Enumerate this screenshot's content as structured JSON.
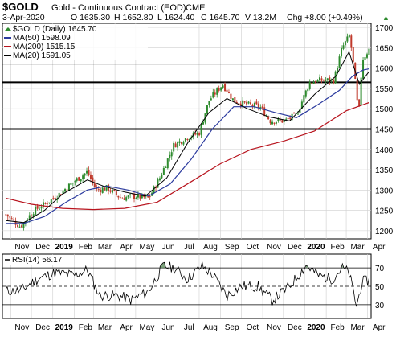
{
  "header": {
    "symbol": "$GOLD",
    "name": "Gold - Continuous Contract (EOD)",
    "exchange": "CME",
    "date": "3-Apr-2020",
    "open": "O 1635.30",
    "high": "H 1652.80",
    "low": "L 1624.40",
    "close": "C 1645.70",
    "volume": "V 13.2M",
    "change": "Chg +8.00 (+0.49%)",
    "change_arrow": "▲"
  },
  "legend": {
    "price": "$GOLD (Daily) 1645.70",
    "ma50": "MA(50) 1598.09",
    "ma200": "MA(200) 1515.15",
    "ma20": "MA(20) 1591.05"
  },
  "rsi_legend": "RSI(14) 56.17",
  "colors": {
    "candle_up": "#2e8b2e",
    "candle_down": "#c0392b",
    "wick": "#555555",
    "ma50": "#2b3a9e",
    "ma200": "#b8141e",
    "ma20": "#000000",
    "rsi_line": "#000000",
    "rsi_fill": "#5a8a5a",
    "grid": "#cfcfcf",
    "support_line": "#000000"
  },
  "chart_data": [
    {
      "type": "candlestick",
      "title": "$GOLD (Daily) 1645.70",
      "ylabel": "",
      "ylim": [
        1180,
        1710
      ],
      "y_ticks": [
        1200,
        1250,
        1300,
        1350,
        1400,
        1450,
        1500,
        1550,
        1600,
        1650,
        1700
      ],
      "x_tick_labels": [
        "Nov",
        "Dec",
        "2019",
        "Feb",
        "Mar",
        "Apr",
        "May",
        "Jun",
        "Jul",
        "Aug",
        "Sep",
        "Oct",
        "Nov",
        "Dec",
        "2020",
        "Feb",
        "Mar",
        "Apr"
      ],
      "x_tick_bold": [
        "2019",
        "2020"
      ],
      "grid": true,
      "horizontal_lines": [
        1610,
        1565,
        1450
      ],
      "series": [
        {
          "name": "$GOLD (Daily) 1645.70",
          "x": [
            "2018-10-25",
            "2018-11-15",
            "2018-12-05",
            "2018-12-20",
            "2019-01-10",
            "2019-01-31",
            "2019-02-20",
            "2019-03-05",
            "2019-03-20",
            "2019-04-10",
            "2019-04-30",
            "2019-05-20",
            "2019-06-05",
            "2019-06-25",
            "2019-07-15",
            "2019-08-01",
            "2019-08-15",
            "2019-09-04",
            "2019-09-20",
            "2019-10-10",
            "2019-10-28",
            "2019-11-12",
            "2019-12-03",
            "2019-12-20",
            "2020-01-08",
            "2020-01-24",
            "2020-02-12",
            "2020-02-24",
            "2020-03-06",
            "2020-03-12",
            "2020-03-19",
            "2020-03-24",
            "2020-04-03"
          ],
          "values": [
            1240,
            1210,
            1250,
            1265,
            1290,
            1320,
            1345,
            1300,
            1305,
            1280,
            1285,
            1280,
            1330,
            1410,
            1430,
            1440,
            1520,
            1560,
            1520,
            1510,
            1505,
            1470,
            1470,
            1485,
            1565,
            1570,
            1570,
            1650,
            1680,
            1600,
            1480,
            1620,
            1645.7
          ]
        },
        {
          "name": "MA(50) 1598.09",
          "x": [
            "2018-10-25",
            "2018-11-20",
            "2018-12-20",
            "2019-01-20",
            "2019-02-20",
            "2019-03-20",
            "2019-04-20",
            "2019-05-20",
            "2019-06-20",
            "2019-07-20",
            "2019-08-20",
            "2019-09-20",
            "2019-10-20",
            "2019-11-20",
            "2019-12-20",
            "2020-01-20",
            "2020-02-20",
            "2020-03-10",
            "2020-03-25",
            "2020-04-03"
          ],
          "values": [
            1218,
            1218,
            1235,
            1270,
            1300,
            1310,
            1300,
            1285,
            1315,
            1375,
            1450,
            1505,
            1505,
            1490,
            1478,
            1510,
            1545,
            1580,
            1595,
            1598.09
          ]
        },
        {
          "name": "MA(200) 1515.15",
          "x": [
            "2018-10-25",
            "2018-12-01",
            "2019-01-15",
            "2019-03-01",
            "2019-04-15",
            "2019-06-01",
            "2019-07-15",
            "2019-09-01",
            "2019-10-15",
            "2019-12-01",
            "2020-01-15",
            "2020-03-01",
            "2020-04-03"
          ],
          "values": [
            1280,
            1265,
            1255,
            1252,
            1255,
            1270,
            1315,
            1365,
            1400,
            1420,
            1445,
            1495,
            1515.15
          ]
        },
        {
          "name": "MA(20) 1591.05",
          "x": [
            "2018-10-25",
            "2018-11-20",
            "2018-12-20",
            "2019-01-15",
            "2019-02-20",
            "2019-03-15",
            "2019-04-15",
            "2019-05-15",
            "2019-06-15",
            "2019-07-15",
            "2019-08-15",
            "2019-09-10",
            "2019-10-10",
            "2019-11-10",
            "2019-12-10",
            "2020-01-15",
            "2020-02-15",
            "2020-03-05",
            "2020-03-20",
            "2020-04-03"
          ],
          "values": [
            1225,
            1220,
            1250,
            1290,
            1325,
            1310,
            1295,
            1285,
            1330,
            1415,
            1490,
            1525,
            1500,
            1480,
            1470,
            1535,
            1580,
            1640,
            1560,
            1591.05
          ]
        }
      ]
    },
    {
      "type": "line",
      "title": "RSI(14) 56.17",
      "ylim": [
        15,
        85
      ],
      "y_ticks": [
        30,
        50,
        70
      ],
      "reference_lines": [
        30,
        50,
        70
      ],
      "grid": true,
      "series": [
        {
          "name": "RSI(14) 56.17",
          "x": [
            "2018-10-25",
            "2018-11-15",
            "2018-12-10",
            "2019-01-05",
            "2019-02-01",
            "2019-02-20",
            "2019-03-10",
            "2019-04-05",
            "2019-04-25",
            "2019-05-20",
            "2019-06-10",
            "2019-06-25",
            "2019-07-15",
            "2019-08-05",
            "2019-08-20",
            "2019-09-10",
            "2019-10-01",
            "2019-10-25",
            "2019-11-15",
            "2019-12-10",
            "2020-01-03",
            "2020-01-20",
            "2020-02-10",
            "2020-02-24",
            "2020-03-05",
            "2020-03-16",
            "2020-03-24",
            "2020-04-03"
          ],
          "values": [
            45,
            45,
            58,
            65,
            62,
            68,
            40,
            40,
            35,
            45,
            72,
            70,
            58,
            72,
            63,
            40,
            50,
            50,
            35,
            50,
            73,
            62,
            58,
            70,
            65,
            28,
            55,
            56.17
          ]
        }
      ]
    }
  ]
}
